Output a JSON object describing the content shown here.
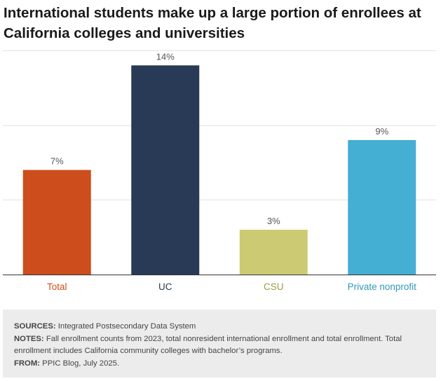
{
  "chart_data": {
    "type": "bar",
    "title": "International students make up a large portion of enrollees at California colleges and universities",
    "categories": [
      "Total",
      "UC",
      "CSU",
      "Private nonprofit"
    ],
    "values": [
      7,
      14,
      3,
      9
    ],
    "value_labels": [
      "7%",
      "14%",
      "3%",
      "9%"
    ],
    "unit": "%",
    "colors": [
      "#cd4e1c",
      "#283a55",
      "#cccb74",
      "#44aed3"
    ],
    "label_colors": [
      "#cd4e1c",
      "#283a55",
      "#9c9a3c",
      "#3199b8"
    ],
    "ylim": [
      0,
      15
    ],
    "gridlines_at": [
      0,
      5,
      10,
      15
    ],
    "grid": true,
    "xlabel": "",
    "ylabel": ""
  },
  "footer": {
    "sources_label": "SOURCES:",
    "sources_text": "Integrated Postsecondary Data System",
    "notes_label": "NOTES:",
    "notes_text": "Fall enrollment counts from 2023, total nonresident international enrollment and total enrollment. Total enrollment includes California community colleges with bachelor’s programs.",
    "from_label": "FROM:",
    "from_text": "PPIC Blog, July 2025."
  }
}
